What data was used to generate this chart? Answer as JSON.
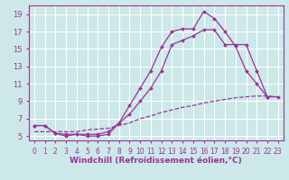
{
  "background_color": "#cce8e8",
  "grid_color": "#ffffff",
  "line_color": "#993399",
  "xlabel": "Windchill (Refroidissement éolien,°C)",
  "xlabel_fontsize": 6.5,
  "xtick_fontsize": 5.5,
  "ytick_fontsize": 6,
  "ylim": [
    4.5,
    20.0
  ],
  "xlim": [
    -0.5,
    23.5
  ],
  "yticks": [
    5,
    7,
    9,
    11,
    13,
    15,
    17,
    19
  ],
  "xticks": [
    0,
    1,
    2,
    3,
    4,
    5,
    6,
    7,
    8,
    9,
    10,
    11,
    12,
    13,
    14,
    15,
    16,
    17,
    18,
    19,
    20,
    21,
    22,
    23
  ],
  "curve1_x": [
    0,
    1,
    2,
    3,
    4,
    5,
    6,
    7,
    8,
    9,
    10,
    11,
    12,
    13,
    14,
    15,
    16,
    17,
    18,
    19,
    20,
    21,
    22
  ],
  "curve1_y": [
    6.2,
    6.2,
    5.3,
    5.0,
    5.2,
    5.0,
    5.0,
    5.2,
    6.5,
    8.5,
    10.5,
    12.5,
    15.2,
    17.0,
    17.3,
    17.3,
    19.3,
    18.5,
    17.0,
    15.3,
    12.5,
    11.0,
    9.5
  ],
  "curve2_x": [
    0,
    1,
    2,
    3,
    4,
    5,
    6,
    7,
    8,
    9,
    10,
    11,
    12,
    13,
    14,
    15,
    16,
    17,
    18,
    19,
    20,
    21,
    22,
    23
  ],
  "curve2_y": [
    6.2,
    6.2,
    5.3,
    5.2,
    5.2,
    5.2,
    5.2,
    5.5,
    6.5,
    7.5,
    9.0,
    10.5,
    12.5,
    15.5,
    16.0,
    16.5,
    17.2,
    17.2,
    15.5,
    15.5,
    15.5,
    12.5,
    9.5,
    9.5
  ],
  "curve3_x": [
    0,
    1,
    2,
    3,
    4,
    5,
    6,
    7,
    8,
    9,
    10,
    11,
    12,
    13,
    14,
    15,
    16,
    17,
    18,
    19,
    20,
    21,
    22,
    23
  ],
  "curve3_y": [
    5.5,
    5.5,
    5.5,
    5.5,
    5.5,
    5.7,
    5.8,
    5.9,
    6.2,
    6.5,
    7.0,
    7.3,
    7.7,
    8.0,
    8.3,
    8.5,
    8.8,
    9.0,
    9.2,
    9.4,
    9.5,
    9.6,
    9.6,
    9.5
  ]
}
